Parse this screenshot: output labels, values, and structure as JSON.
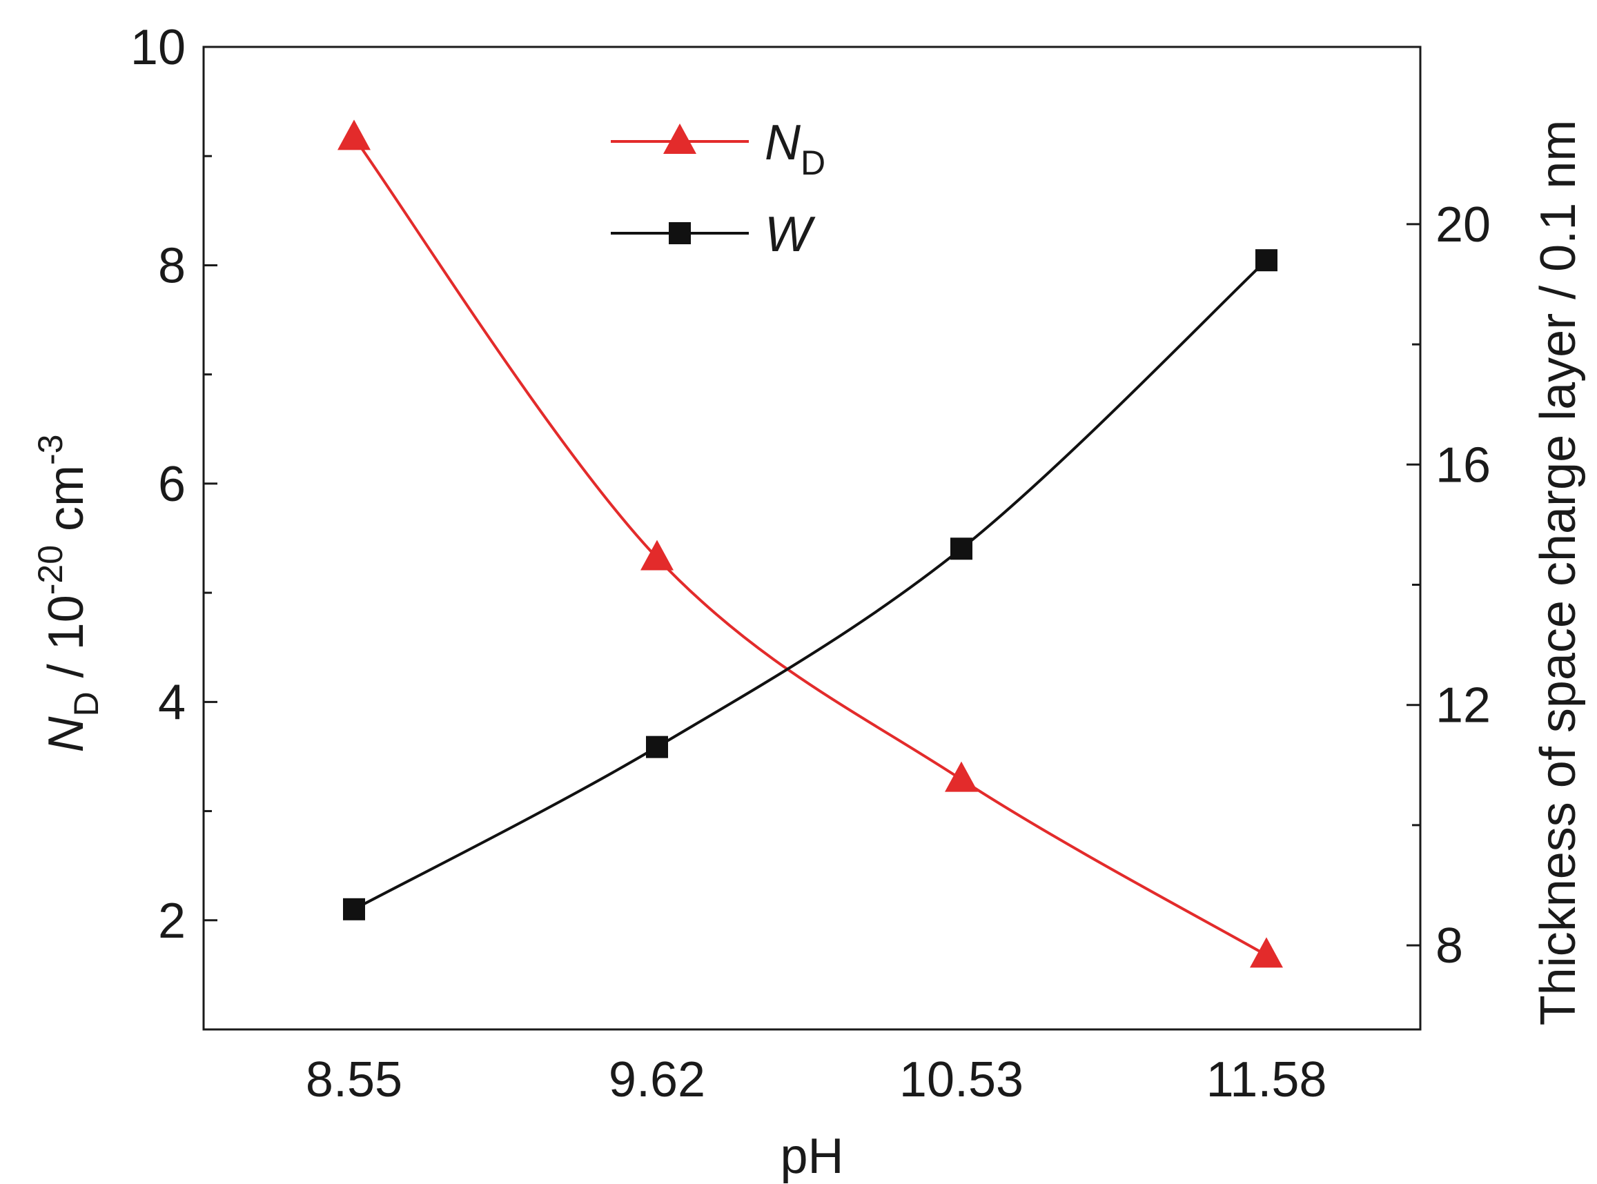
{
  "chart_data": {
    "type": "line",
    "xlabel": "pH",
    "ylabel_left": {
      "main": "N",
      "sub": "D",
      "unit_pre": " / 10",
      "exp": "-20",
      "unit_mid": " cm",
      "exp2": "-3"
    },
    "ylabel_right": "Thickness of space charge layer / 0.1 nm",
    "categories": [
      "8.55",
      "9.62",
      "10.53",
      "11.58"
    ],
    "y_left": {
      "lim": [
        1.0,
        10.0
      ],
      "major_ticks": [
        2,
        4,
        6,
        8,
        10
      ],
      "minor_ticks": [
        3,
        5,
        7,
        9
      ]
    },
    "y_right": {
      "lim": [
        6.6,
        22.95
      ],
      "major_ticks": [
        8,
        12,
        16,
        20
      ],
      "minor_ticks": [
        10,
        14,
        18
      ]
    },
    "grid": false,
    "legend_position": "top-center",
    "series": [
      {
        "name": "N",
        "name_sub": "D",
        "axis": "left",
        "marker": "triangle",
        "color": "#e32b2b",
        "values": [
          9.17,
          5.32,
          3.29,
          1.68
        ]
      },
      {
        "name": "W",
        "axis": "right",
        "marker": "square",
        "color": "#111111",
        "values": [
          8.6,
          11.3,
          14.6,
          19.4
        ]
      }
    ]
  }
}
